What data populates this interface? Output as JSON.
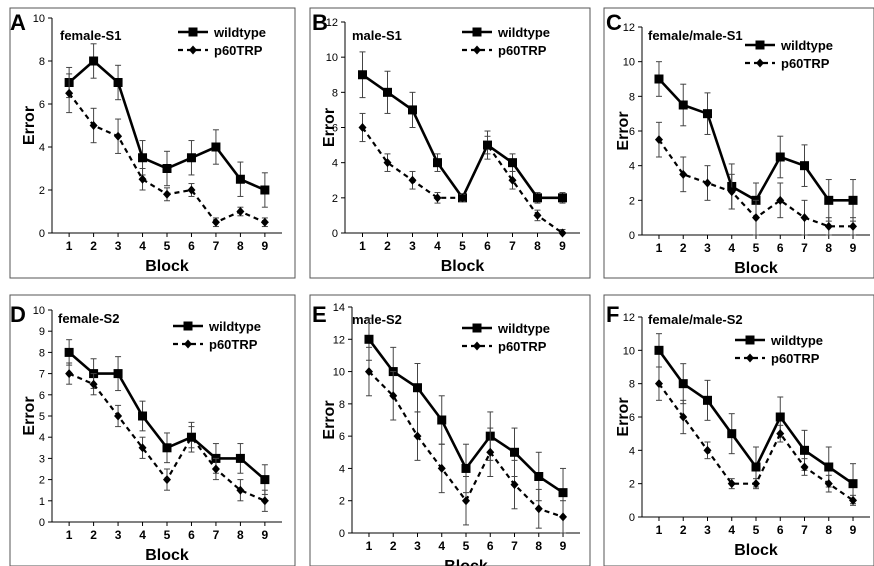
{
  "chart_data": [
    {
      "type": "line",
      "panel_label": "A",
      "title": "female-S1",
      "xlabel": "Block",
      "ylabel": "Error",
      "x": [
        1,
        2,
        3,
        4,
        5,
        6,
        7,
        8,
        9
      ],
      "ylim": [
        0,
        10
      ],
      "yticks": [
        0,
        2,
        4,
        6,
        8,
        10
      ],
      "legend_position": "top-right",
      "series": [
        {
          "name": "wildtype",
          "values": [
            7,
            8,
            7,
            3.5,
            3,
            3.5,
            4,
            2.5,
            2
          ],
          "error": [
            0.7,
            0.8,
            0.8,
            0.8,
            0.8,
            0.8,
            0.8,
            0.8,
            0.8
          ],
          "marker": "square",
          "line": "solid"
        },
        {
          "name": "p60TRP",
          "values": [
            6.5,
            5,
            4.5,
            2.5,
            1.8,
            2,
            0.5,
            1,
            0.5
          ],
          "error": [
            0.9,
            0.8,
            0.8,
            0.5,
            0.3,
            0.3,
            0.2,
            0.2,
            0.2
          ],
          "marker": "diamond",
          "line": "dashed"
        }
      ]
    },
    {
      "type": "line",
      "panel_label": "B",
      "title": "male-S1",
      "xlabel": "Block",
      "ylabel": "Error",
      "x": [
        1,
        2,
        3,
        4,
        5,
        6,
        7,
        8,
        9
      ],
      "ylim": [
        0,
        12
      ],
      "yticks": [
        0,
        2,
        4,
        6,
        8,
        10,
        12
      ],
      "legend_position": "top-right",
      "series": [
        {
          "name": "wildtype",
          "values": [
            9,
            8,
            7,
            4,
            2,
            5,
            4,
            2,
            2
          ],
          "error": [
            1.3,
            1.2,
            1.0,
            0.5,
            0.2,
            0.8,
            0.5,
            0.3,
            0.3
          ],
          "marker": "square",
          "line": "solid"
        },
        {
          "name": "p60TRP",
          "values": [
            6,
            4,
            3,
            2,
            2,
            5,
            3,
            1,
            0
          ],
          "error": [
            0.8,
            0.5,
            0.5,
            0.3,
            0.2,
            0.5,
            0.5,
            0.3,
            0.2
          ],
          "marker": "diamond",
          "line": "dashed"
        }
      ]
    },
    {
      "type": "line",
      "panel_label": "C",
      "title": "female/male-S1",
      "xlabel": "Block",
      "ylabel": "Error",
      "x": [
        1,
        2,
        3,
        4,
        5,
        6,
        7,
        8,
        9
      ],
      "ylim": [
        0,
        12
      ],
      "yticks": [
        0,
        2,
        4,
        6,
        8,
        10,
        12
      ],
      "legend_position": "top-right",
      "series": [
        {
          "name": "wildtype",
          "values": [
            9,
            7.5,
            7,
            2.8,
            2,
            4.5,
            4,
            2,
            2
          ],
          "error": [
            1.0,
            1.2,
            1.2,
            1.3,
            1.0,
            1.2,
            1.2,
            1.2,
            1.2
          ],
          "marker": "square",
          "line": "solid"
        },
        {
          "name": "p60TRP",
          "values": [
            5.5,
            3.5,
            3,
            2.5,
            1,
            2,
            1,
            0.5,
            0.5
          ],
          "error": [
            1.0,
            1.0,
            1.0,
            1.0,
            1.0,
            1.0,
            1.0,
            0.5,
            0.5
          ],
          "marker": "diamond",
          "line": "dashed"
        }
      ]
    },
    {
      "type": "line",
      "panel_label": "D",
      "title": "female-S2",
      "xlabel": "Block",
      "ylabel": "Error",
      "x": [
        1,
        2,
        3,
        4,
        5,
        6,
        7,
        8,
        9
      ],
      "ylim": [
        0,
        10
      ],
      "yticks": [
        0,
        1,
        2,
        3,
        4,
        5,
        6,
        7,
        8,
        9,
        10
      ],
      "legend_position": "top-right",
      "series": [
        {
          "name": "wildtype",
          "values": [
            8,
            7,
            7,
            5,
            3.5,
            4,
            3,
            3,
            2
          ],
          "error": [
            0.6,
            0.7,
            0.8,
            0.7,
            0.7,
            0.7,
            0.7,
            0.7,
            0.7
          ],
          "marker": "square",
          "line": "solid"
        },
        {
          "name": "p60TRP",
          "values": [
            7,
            6.5,
            5,
            3.5,
            2,
            4,
            2.5,
            1.5,
            1
          ],
          "error": [
            0.5,
            0.5,
            0.5,
            0.5,
            0.5,
            0.5,
            0.5,
            0.5,
            0.5
          ],
          "marker": "diamond",
          "line": "dashed"
        }
      ]
    },
    {
      "type": "line",
      "panel_label": "E",
      "title": "male-S2",
      "xlabel": "Block",
      "ylabel": "Error",
      "x": [
        1,
        2,
        3,
        4,
        5,
        6,
        7,
        8,
        9
      ],
      "ylim": [
        0,
        14
      ],
      "yticks": [
        0,
        2,
        4,
        6,
        8,
        10,
        12,
        14
      ],
      "legend_position": "top-right",
      "series": [
        {
          "name": "wildtype",
          "values": [
            12,
            10,
            9,
            7,
            4,
            6,
            5,
            3.5,
            2.5
          ],
          "error": [
            1.3,
            1.5,
            1.5,
            1.5,
            1.5,
            1.5,
            1.5,
            1.5,
            1.5
          ],
          "marker": "square",
          "line": "solid"
        },
        {
          "name": "p60TRP",
          "values": [
            10,
            8.5,
            6,
            4,
            2,
            5,
            3,
            1.5,
            1
          ],
          "error": [
            1.5,
            1.5,
            1.5,
            1.5,
            1.5,
            1.5,
            1.5,
            1.2,
            1.0
          ],
          "marker": "diamond",
          "line": "dashed"
        }
      ]
    },
    {
      "type": "line",
      "panel_label": "F",
      "title": "female/male-S2",
      "xlabel": "Block",
      "ylabel": "Error",
      "x": [
        1,
        2,
        3,
        4,
        5,
        6,
        7,
        8,
        9
      ],
      "ylim": [
        0,
        12
      ],
      "yticks": [
        0,
        2,
        4,
        6,
        8,
        10,
        12
      ],
      "legend_position": "top-right",
      "series": [
        {
          "name": "wildtype",
          "values": [
            10,
            8,
            7,
            5,
            3,
            6,
            4,
            3,
            2
          ],
          "error": [
            1.0,
            1.2,
            1.2,
            1.2,
            1.2,
            1.2,
            1.2,
            1.2,
            1.2
          ],
          "marker": "square",
          "line": "solid"
        },
        {
          "name": "p60TRP",
          "values": [
            8,
            6,
            4,
            2,
            2,
            5,
            3,
            2,
            1
          ],
          "error": [
            1.0,
            1.0,
            0.5,
            0.3,
            0.3,
            0.5,
            0.5,
            0.5,
            0.3
          ],
          "marker": "diamond",
          "line": "dashed"
        }
      ]
    }
  ]
}
